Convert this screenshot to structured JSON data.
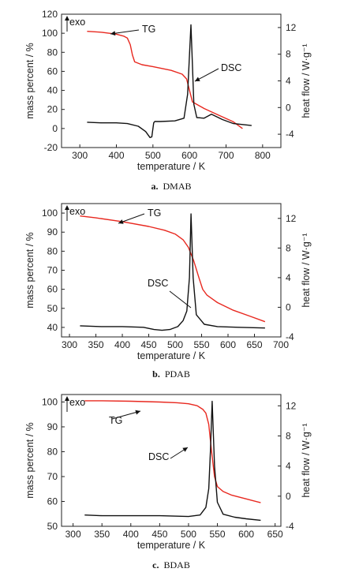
{
  "chart_data": [
    {
      "type": "line",
      "caption_letter": "a.",
      "caption_name": "DMAB",
      "xlabel": "temperature / K",
      "ylabel_left": "mass percent / %",
      "ylabel_right": "heat flow / W·g⁻¹",
      "exo_label": "exo",
      "xlim": [
        250,
        850
      ],
      "ylim_left": [
        -20,
        120
      ],
      "ylim_right": [
        -6,
        14
      ],
      "xticks": [
        300,
        400,
        500,
        600,
        700,
        800
      ],
      "yticks_left": [
        -20,
        0,
        20,
        40,
        60,
        80,
        100,
        120
      ],
      "yticks_right": [
        -4,
        0,
        4,
        8,
        12
      ],
      "series": [
        {
          "name": "TG",
          "axis": "left",
          "color": "#e8281f",
          "x": [
            320,
            360,
            400,
            420,
            430,
            438,
            444,
            450,
            470,
            500,
            550,
            580,
            592,
            600,
            608,
            640,
            680,
            720,
            745
          ],
          "y": [
            102,
            101,
            99,
            97,
            95,
            88,
            77,
            70,
            67,
            65,
            61,
            57,
            52,
            40,
            28,
            21,
            14,
            7,
            0
          ]
        },
        {
          "name": "DSC",
          "axis": "right",
          "color": "#111111",
          "x": [
            320,
            360,
            400,
            430,
            460,
            480,
            492,
            497,
            502,
            505,
            520,
            560,
            585,
            595,
            600,
            604,
            607,
            612,
            620,
            640,
            660,
            690,
            720,
            770
          ],
          "y": [
            -2.2,
            -2.3,
            -2.3,
            -2.4,
            -2.8,
            -3.6,
            -4.5,
            -4.4,
            -2.3,
            -2.1,
            -2.1,
            -2.0,
            -1.6,
            2.0,
            8.0,
            12.4,
            8.0,
            0.5,
            -1.5,
            -1.6,
            -1.0,
            -1.8,
            -2.4,
            -2.7
          ]
        }
      ],
      "annotations": [
        "TG",
        "DSC"
      ]
    },
    {
      "type": "line",
      "caption_letter": "b.",
      "caption_name": "PDAB",
      "xlabel": "temperature / K",
      "ylabel_left": "mass percent / %",
      "ylabel_right": "heat flow / W·g⁻¹",
      "exo_label": "exo",
      "xlim": [
        285,
        700
      ],
      "ylim_left": [
        35,
        105
      ],
      "ylim_right": [
        -4,
        14
      ],
      "xticks": [
        300,
        350,
        400,
        450,
        500,
        550,
        600,
        650,
        700
      ],
      "yticks_left": [
        40,
        50,
        60,
        70,
        80,
        90,
        100
      ],
      "yticks_right": [
        -4,
        0,
        4,
        8,
        12
      ],
      "series": [
        {
          "name": "TG",
          "axis": "left",
          "color": "#e8281f",
          "x": [
            320,
            350,
            400,
            450,
            480,
            500,
            515,
            525,
            535,
            545,
            552,
            560,
            580,
            610,
            640,
            670
          ],
          "y": [
            98.5,
            97.5,
            95.5,
            93,
            91,
            89,
            86,
            82,
            75,
            66,
            60,
            57,
            53,
            49,
            46,
            43
          ]
        },
        {
          "name": "DSC",
          "axis": "right",
          "color": "#111111",
          "x": [
            320,
            360,
            400,
            440,
            460,
            475,
            490,
            505,
            515,
            522,
            527,
            530,
            534,
            540,
            555,
            580,
            620,
            670
          ],
          "y": [
            -2.5,
            -2.6,
            -2.6,
            -2.7,
            -3.0,
            -3.1,
            -3.0,
            -2.6,
            -1.8,
            -0.5,
            4.0,
            12.6,
            4.0,
            -1.0,
            -2.3,
            -2.6,
            -2.7,
            -2.8
          ]
        }
      ],
      "annotations": [
        "TG",
        "DSC"
      ]
    },
    {
      "type": "line",
      "caption_letter": "c.",
      "caption_name": "BDAB",
      "xlabel": "temperature / K",
      "ylabel_left": "mass percent / %",
      "ylabel_right": "heat flow / W·g⁻¹",
      "exo_label": "exo",
      "xlim": [
        280,
        660
      ],
      "ylim_left": [
        50,
        103
      ],
      "ylim_right": [
        -4,
        13.5
      ],
      "xticks": [
        300,
        350,
        400,
        450,
        500,
        550,
        600,
        650
      ],
      "yticks_left": [
        50,
        60,
        70,
        80,
        90,
        100
      ],
      "yticks_right": [
        -4,
        0,
        4,
        8,
        12
      ],
      "series": [
        {
          "name": "TG",
          "axis": "left",
          "color": "#e8281f",
          "x": [
            320,
            350,
            400,
            450,
            480,
            500,
            515,
            525,
            530,
            535,
            540,
            545,
            550,
            560,
            575,
            600,
            625
          ],
          "y": [
            100.5,
            100.5,
            100.3,
            100,
            99.7,
            99.3,
            98.5,
            97,
            95.5,
            91,
            80,
            70,
            66,
            64,
            62.5,
            61,
            59.5
          ]
        },
        {
          "name": "DSC",
          "axis": "right",
          "color": "#111111",
          "x": [
            320,
            350,
            400,
            450,
            500,
            520,
            530,
            535,
            538,
            541,
            545,
            550,
            560,
            580,
            600,
            625
          ],
          "y": [
            -2.5,
            -2.6,
            -2.6,
            -2.6,
            -2.7,
            -2.5,
            -1.5,
            1.0,
            6.0,
            12.6,
            4.0,
            -0.8,
            -2.4,
            -2.8,
            -3.0,
            -3.2
          ]
        }
      ],
      "annotations": [
        "TG",
        "DSC"
      ]
    }
  ]
}
